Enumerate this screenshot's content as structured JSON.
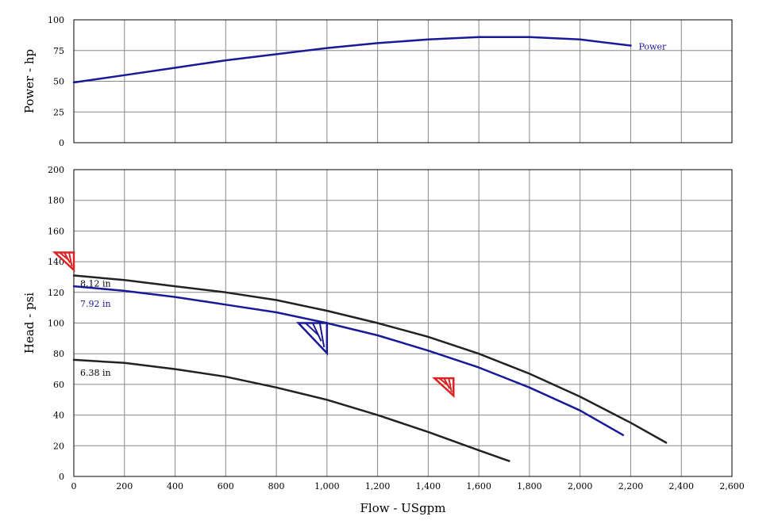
{
  "chart_data": [
    {
      "type": "line",
      "ylabel": "Power - hp",
      "ylim": [
        0,
        100
      ],
      "yticks": [
        0,
        25,
        50,
        75,
        100
      ],
      "xlim": [
        0,
        2600
      ],
      "grid": true,
      "series": [
        {
          "name": "Power",
          "color": "#1a1a99",
          "x": [
            0,
            200,
            400,
            600,
            800,
            1000,
            1200,
            1400,
            1600,
            1800,
            2000,
            2200
          ],
          "y": [
            49,
            55,
            61,
            67,
            72,
            77,
            81,
            84,
            86,
            86,
            84,
            79
          ]
        }
      ]
    },
    {
      "type": "line",
      "xlabel": "Flow - USgpm",
      "ylabel": "Head - psi",
      "xlim": [
        0,
        2600
      ],
      "ylim": [
        0,
        200
      ],
      "xticks": [
        "0",
        "200",
        "400",
        "600",
        "800",
        "1,000",
        "1,200",
        "1,400",
        "1,600",
        "1,800",
        "2,000",
        "2,200",
        "2,400",
        "2,600"
      ],
      "yticks": [
        0,
        20,
        40,
        60,
        80,
        100,
        120,
        140,
        160,
        180,
        200
      ],
      "grid": true,
      "series": [
        {
          "name": "8.12 in",
          "color": "#222222",
          "x": [
            0,
            200,
            400,
            600,
            800,
            1000,
            1200,
            1400,
            1600,
            1800,
            2000,
            2200,
            2340
          ],
          "y": [
            131,
            128,
            124,
            120,
            115,
            108,
            100,
            91,
            80,
            67,
            52,
            35,
            22
          ]
        },
        {
          "name": "7.92 in",
          "color": "#1a1a99",
          "x": [
            0,
            200,
            400,
            600,
            800,
            1000,
            1200,
            1400,
            1600,
            1800,
            2000,
            2170
          ],
          "y": [
            124,
            121,
            117,
            112,
            107,
            100,
            92,
            82,
            71,
            58,
            43,
            27
          ]
        },
        {
          "name": "6.38 in",
          "color": "#222222",
          "x": [
            0,
            200,
            400,
            600,
            800,
            1000,
            1200,
            1400,
            1600,
            1720
          ],
          "y": [
            76,
            74,
            70,
            65,
            58,
            50,
            40,
            29,
            17,
            10
          ]
        }
      ],
      "markers": [
        {
          "color": "#dd2222",
          "x": 0,
          "y": 146
        },
        {
          "color": "#1a1a99",
          "x": 1000,
          "y": 100
        },
        {
          "color": "#dd2222",
          "x": 1500,
          "y": 64
        }
      ]
    }
  ]
}
